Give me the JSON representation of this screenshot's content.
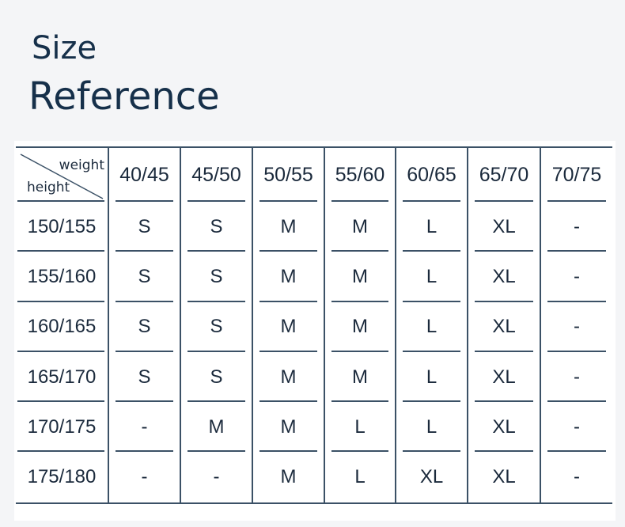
{
  "title": {
    "line1": "Size",
    "line2": "Reference"
  },
  "table": {
    "corner": {
      "top_right": "weight",
      "bottom_left": "height"
    },
    "weights": [
      "40/45",
      "45/50",
      "50/55",
      "55/60",
      "60/65",
      "65/70",
      "70/75"
    ],
    "rows": [
      {
        "height": "150/155",
        "sizes": [
          "S",
          "S",
          "M",
          "M",
          "L",
          "XL",
          "-"
        ]
      },
      {
        "height": "155/160",
        "sizes": [
          "S",
          "S",
          "M",
          "M",
          "L",
          "XL",
          "-"
        ]
      },
      {
        "height": "160/165",
        "sizes": [
          "S",
          "S",
          "M",
          "M",
          "L",
          "XL",
          "-"
        ]
      },
      {
        "height": "165/170",
        "sizes": [
          "S",
          "S",
          "M",
          "M",
          "L",
          "XL",
          "-"
        ]
      },
      {
        "height": "170/175",
        "sizes": [
          "-",
          "M",
          "M",
          "L",
          "L",
          "XL",
          "-"
        ]
      },
      {
        "height": "175/180",
        "sizes": [
          "-",
          "-",
          "M",
          "L",
          "XL",
          "XL",
          "-"
        ]
      }
    ]
  },
  "colors": {
    "text": "#1b2a3c",
    "lines": "#3b5166",
    "title": "#16304a"
  }
}
